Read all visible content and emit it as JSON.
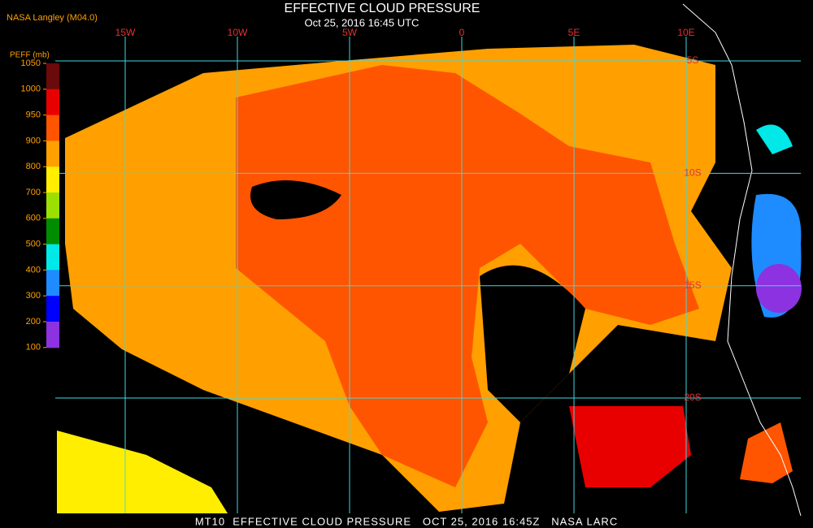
{
  "source": "NASA Langley (M04.0)",
  "title": "EFFECTIVE CLOUD PRESSURE",
  "subtitle": "Oct 25, 2016 16:45 UTC",
  "footer": "MT10  EFFECTIVE CLOUD PRESSURE   OCT 25, 2016 16:45Z   NASA LARC",
  "colorbar": {
    "label": "PEFF (mb)",
    "ticks": [
      1050,
      1000,
      950,
      900,
      800,
      700,
      600,
      500,
      400,
      300,
      200,
      100
    ],
    "colors": [
      "#6b0a0a",
      "#e80000",
      "#ff5500",
      "#ffa000",
      "#ffee00",
      "#9be000",
      "#008c00",
      "#00e8e8",
      "#1e8cff",
      "#0000ff",
      "#8c32e0"
    ]
  },
  "lon_lines": [
    {
      "value": -15,
      "label": "15W"
    },
    {
      "value": -10,
      "label": "10W"
    },
    {
      "value": -5,
      "label": "5W"
    },
    {
      "value": 0,
      "label": "0"
    },
    {
      "value": 5,
      "label": "5E"
    },
    {
      "value": 10,
      "label": "10E"
    }
  ],
  "lat_lines": [
    {
      "value": -5,
      "label": "5S"
    },
    {
      "value": -10,
      "label": "10S"
    },
    {
      "value": -15,
      "label": "15S"
    },
    {
      "value": -20,
      "label": "20S"
    }
  ]
}
